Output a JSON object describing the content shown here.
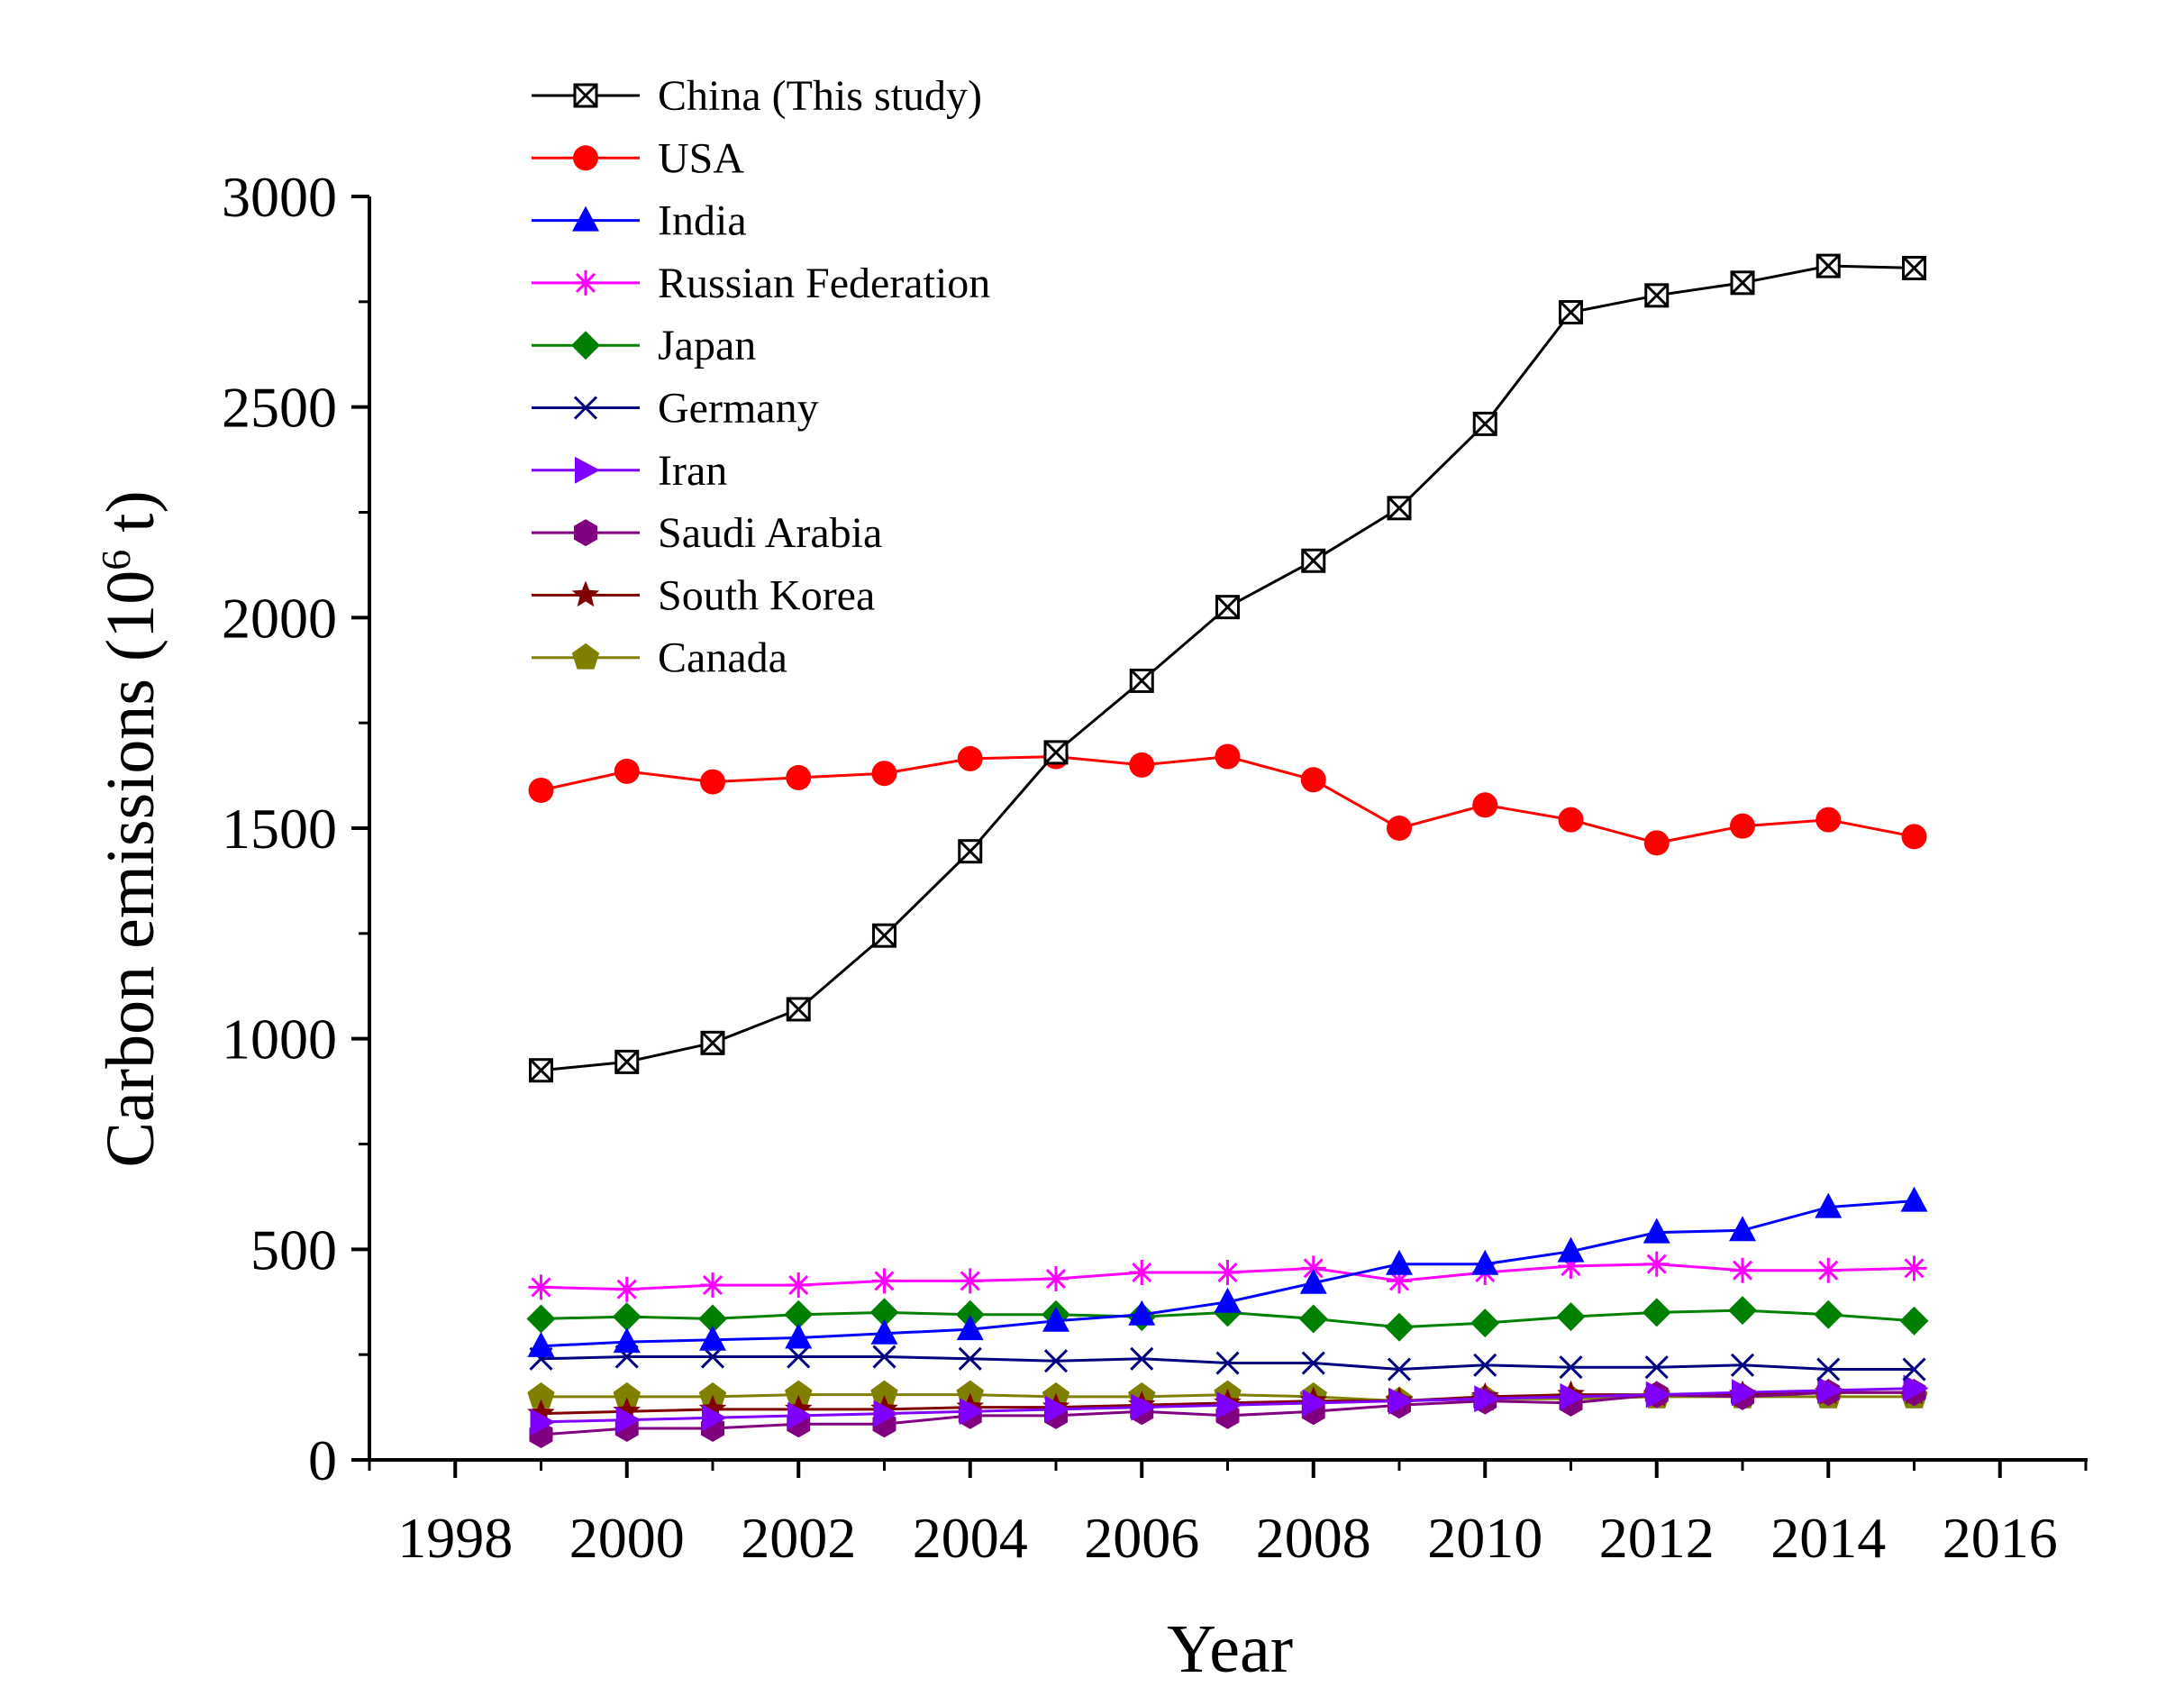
{
  "chart_data": {
    "type": "line",
    "title": "",
    "xlabel": "Year",
    "ylabel": "Carbon emissions (10",
    "ylabel_superscript": "6",
    "ylabel_suffix": " t)",
    "xlim": [
      1997,
      2017
    ],
    "ylim": [
      0,
      3000
    ],
    "x_ticks": [
      1998,
      2000,
      2002,
      2004,
      2006,
      2008,
      2010,
      2012,
      2014,
      2016
    ],
    "y_ticks": [
      0,
      500,
      1000,
      1500,
      2000,
      2500,
      3000
    ],
    "grid": false,
    "legend_position": "top-left",
    "x": [
      1999,
      2000,
      2001,
      2002,
      2003,
      2004,
      2005,
      2006,
      2007,
      2008,
      2009,
      2010,
      2011,
      2012,
      2013,
      2014,
      2015
    ],
    "series": [
      {
        "name": "China (This study)",
        "color": "#000000",
        "marker": "boxed-x",
        "values": [
          925,
          945,
          990,
          1070,
          1245,
          1445,
          1680,
          1850,
          2025,
          2135,
          2260,
          2460,
          2725,
          2765,
          2795,
          2835,
          2830
        ]
      },
      {
        "name": "USA",
        "color": "#ff0000",
        "marker": "circle",
        "values": [
          1590,
          1635,
          1610,
          1620,
          1630,
          1665,
          1670,
          1650,
          1670,
          1615,
          1500,
          1555,
          1520,
          1465,
          1505,
          1520,
          1480
        ]
      },
      {
        "name": "India",
        "color": "#0000ff",
        "marker": "triangle-up",
        "values": [
          270,
          280,
          285,
          290,
          300,
          310,
          330,
          345,
          375,
          420,
          465,
          465,
          495,
          540,
          545,
          600,
          615
        ]
      },
      {
        "name": "Russian Federation",
        "color": "#ff00ff",
        "marker": "asterisk",
        "values": [
          410,
          405,
          415,
          415,
          425,
          425,
          430,
          445,
          445,
          455,
          425,
          445,
          460,
          465,
          450,
          450,
          455
        ]
      },
      {
        "name": "Japan",
        "color": "#008000",
        "marker": "diamond",
        "values": [
          335,
          340,
          335,
          345,
          350,
          345,
          345,
          340,
          350,
          335,
          315,
          325,
          340,
          350,
          355,
          345,
          330
        ]
      },
      {
        "name": "Germany",
        "color": "#000080",
        "marker": "x",
        "values": [
          240,
          245,
          245,
          245,
          245,
          240,
          235,
          240,
          230,
          230,
          215,
          225,
          220,
          220,
          225,
          215,
          215
        ]
      },
      {
        "name": "Iran",
        "color": "#8000ff",
        "marker": "triangle-right",
        "values": [
          90,
          95,
          100,
          105,
          110,
          115,
          120,
          125,
          130,
          135,
          140,
          145,
          150,
          155,
          160,
          165,
          170
        ]
      },
      {
        "name": "Saudi Arabia",
        "color": "#800080",
        "marker": "hexagon",
        "values": [
          60,
          75,
          75,
          85,
          85,
          105,
          105,
          115,
          105,
          115,
          130,
          140,
          135,
          155,
          150,
          160,
          160
        ]
      },
      {
        "name": "South Korea",
        "color": "#800000",
        "marker": "star",
        "values": [
          110,
          115,
          120,
          120,
          120,
          125,
          125,
          130,
          135,
          140,
          140,
          150,
          155,
          155,
          155,
          160,
          160
        ]
      },
      {
        "name": "Canada",
        "color": "#808000",
        "marker": "pentagon",
        "values": [
          150,
          150,
          150,
          155,
          155,
          155,
          150,
          150,
          155,
          150,
          140,
          145,
          145,
          150,
          150,
          150,
          150
        ]
      }
    ]
  }
}
